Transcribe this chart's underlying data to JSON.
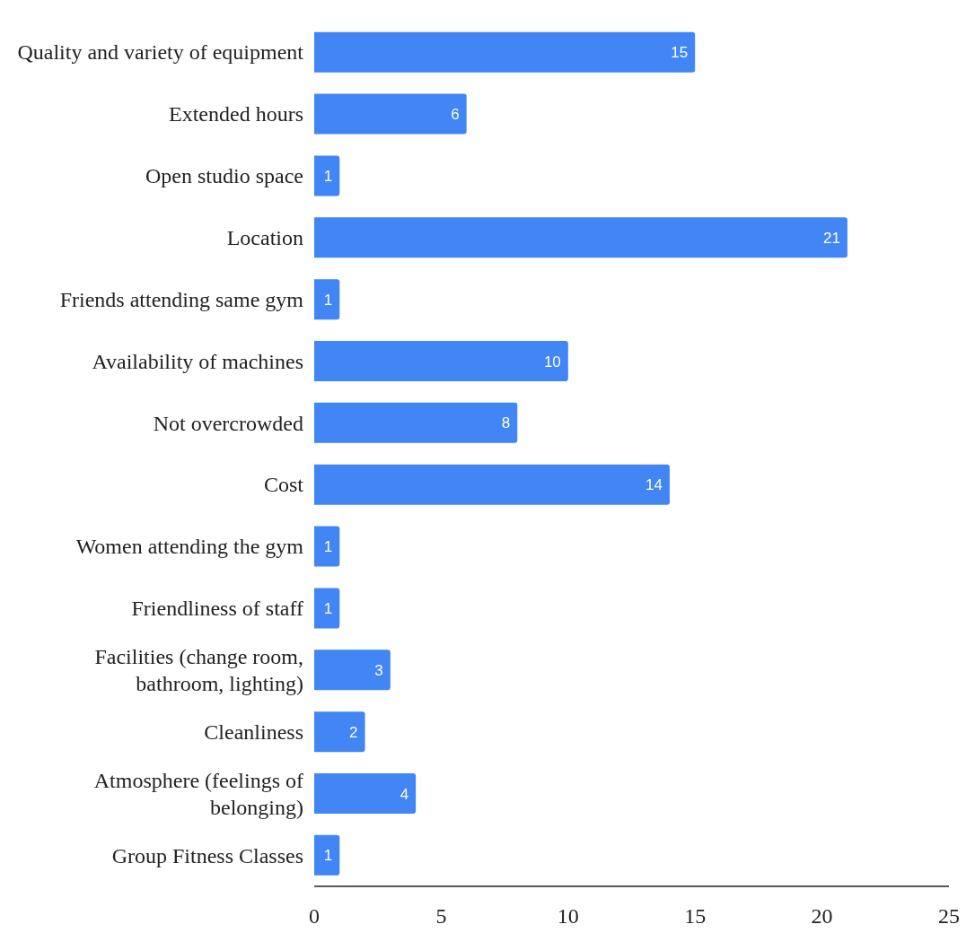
{
  "chart_data": {
    "type": "bar",
    "orientation": "horizontal",
    "categories": [
      "Quality and variety of equipment",
      "Extended hours",
      "Open studio space",
      "Location",
      "Friends attending same gym",
      "Availability of machines",
      "Not overcrowded",
      "Cost",
      "Women attending the gym",
      "Friendliness of staff",
      "Facilities (change room, bathroom, lighting)",
      "Cleanliness",
      "Atmosphere (feelings of belonging)",
      "Group Fitness Classes"
    ],
    "values": [
      15,
      6,
      1,
      21,
      1,
      10,
      8,
      14,
      1,
      1,
      3,
      2,
      4,
      1
    ],
    "color": "#4285f4",
    "xlim": [
      0,
      25
    ],
    "xticks": [
      0,
      5,
      10,
      15,
      20,
      25
    ],
    "data_labels": true,
    "grid": false,
    "legend": false
  }
}
